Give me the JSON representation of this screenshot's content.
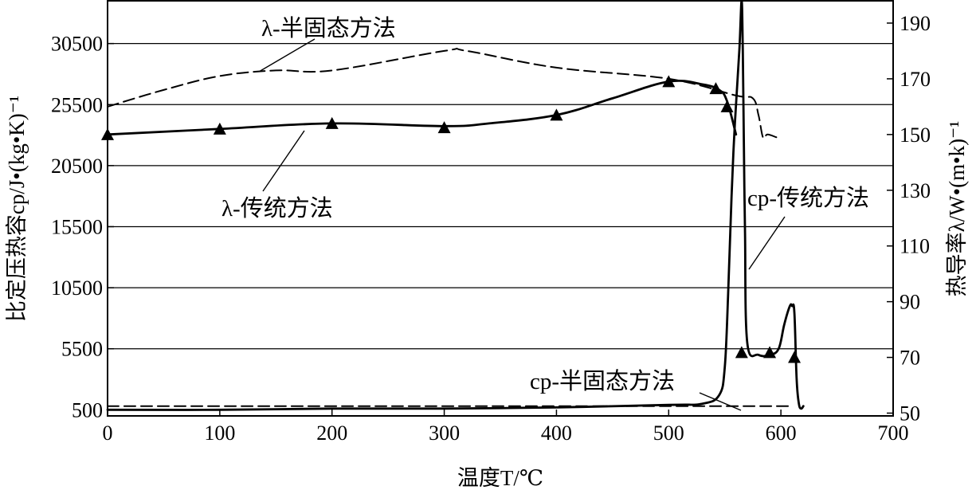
{
  "chart_data": {
    "type": "line",
    "x_axis": {
      "label": "温度T/℃",
      "range": [
        0,
        700
      ],
      "ticks": [
        0,
        100,
        200,
        300,
        400,
        500,
        600,
        700
      ]
    },
    "y_left": {
      "label": "比定压热容cp/J•(kg•K)⁻¹",
      "range": [
        0,
        34000
      ],
      "ticks": [
        500,
        5500,
        10500,
        15500,
        20500,
        25500,
        30500
      ]
    },
    "y_right": {
      "label": "热导率λ/W•(m•k)⁻¹",
      "range": [
        49,
        198
      ],
      "ticks": [
        50,
        70,
        90,
        110,
        130,
        150,
        170,
        190
      ]
    },
    "grid": "horizontal",
    "legend": "none",
    "series": [
      {
        "name": "λ-传统方法",
        "axis": "right",
        "style": "solid-triangles",
        "x": [
          0,
          100,
          200,
          300,
          340,
          400,
          450,
          500,
          530,
          545,
          552,
          560
        ],
        "y": [
          150,
          152,
          154,
          153,
          154,
          157,
          163,
          169,
          168,
          166,
          162,
          150
        ],
        "marker_x": [
          0,
          100,
          200,
          300,
          400,
          500,
          542,
          552
        ],
        "marker_y": [
          150,
          152,
          154,
          152.5,
          157,
          169,
          166.5,
          160
        ]
      },
      {
        "name": "λ-半固态方法",
        "axis": "right",
        "style": "dashed",
        "x": [
          0,
          50,
          100,
          150,
          200,
          300,
          320,
          400,
          500,
          560,
          575,
          580,
          584,
          588,
          596
        ],
        "y": [
          160,
          166,
          171,
          173,
          173,
          180,
          180,
          174,
          170,
          164,
          163,
          157,
          149,
          150,
          149
        ],
        "marker_x": [],
        "marker_y": []
      },
      {
        "name": "cp-传统方法",
        "axis": "left",
        "style": "solid-triangles",
        "x": [
          0,
          100,
          200,
          300,
          400,
          500,
          530,
          545,
          550,
          553,
          556,
          559,
          563,
          565,
          566,
          567,
          568,
          570,
          580,
          590,
          598,
          603,
          608,
          610,
          612,
          614,
          616,
          618,
          620
        ],
        "y": [
          500,
          500,
          600,
          600,
          700,
          900,
          1000,
          1700,
          4000,
          10000,
          18000,
          24000,
          30000,
          34000,
          30000,
          22000,
          15000,
          6000,
          5000,
          5000,
          5500,
          7500,
          9000,
          9000,
          8500,
          3000,
          1000,
          600,
          800
        ],
        "marker_x": [
          565,
          590,
          612
        ],
        "marker_y": [
          5200,
          5200,
          4800
        ]
      },
      {
        "name": "cp-半固态方法",
        "axis": "left",
        "style": "dashed",
        "x": [
          0,
          100,
          200,
          300,
          400,
          500,
          560,
          590,
          610
        ],
        "y": [
          800,
          800,
          800,
          800,
          800,
          800,
          800,
          800,
          800
        ],
        "marker_x": [],
        "marker_y": []
      }
    ],
    "annotations": [
      {
        "text": "λ-半固态方法",
        "series": "λ-半固态方法"
      },
      {
        "text": "λ-传统方法",
        "series": "λ-传统方法"
      },
      {
        "text": "cp-传统方法",
        "series": "cp-传统方法"
      },
      {
        "text": "cp-半固态方法",
        "series": "cp-半固态方法"
      }
    ]
  }
}
